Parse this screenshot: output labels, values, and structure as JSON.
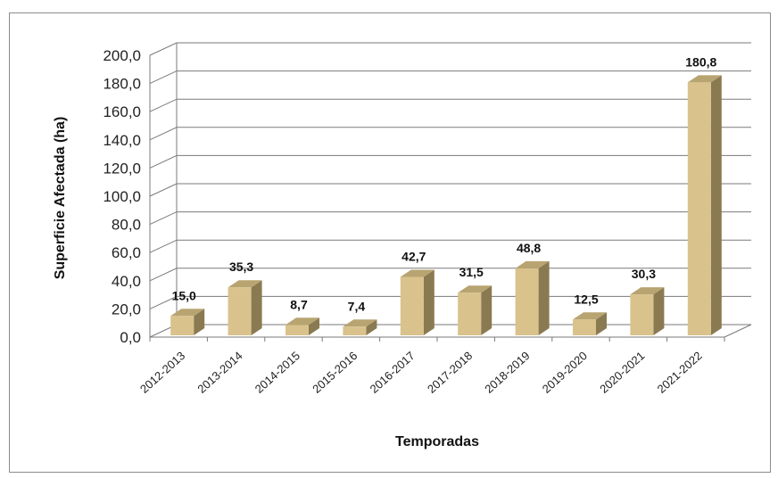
{
  "chart_data": {
    "type": "bar",
    "categories": [
      "2012-2013",
      "2013-2014",
      "2014-2015",
      "2015-2016",
      "2016-2017",
      "2017-2018",
      "2018-2019",
      "2019-2020",
      "2020-2021",
      "2021-2022"
    ],
    "values": [
      15.0,
      35.3,
      8.7,
      7.4,
      42.7,
      31.5,
      48.8,
      12.5,
      30.3,
      180.8
    ],
    "value_labels": [
      "15,0",
      "35,3",
      "8,7",
      "7,4",
      "42,7",
      "31,5",
      "48,8",
      "12,5",
      "30,3",
      "180,8"
    ],
    "xlabel": "Temporadas",
    "ylabel": "Superficie Afectada (ha)",
    "ylim": [
      0,
      200
    ],
    "yticks": [
      0,
      20,
      40,
      60,
      80,
      100,
      120,
      140,
      160,
      180,
      200
    ],
    "ytick_labels": [
      "0,0",
      "20,0",
      "40,0",
      "60,0",
      "80,0",
      "100,0",
      "120,0",
      "140,0",
      "160,0",
      "180,0",
      "200,0"
    ],
    "grid": true,
    "style_3d": true,
    "colors": {
      "bar_front": "#d9c28c",
      "bar_side": "#8a7a52",
      "bar_top": "#b8a470",
      "grid": "#7a7a7a",
      "frame": "#8c8c8c"
    }
  }
}
